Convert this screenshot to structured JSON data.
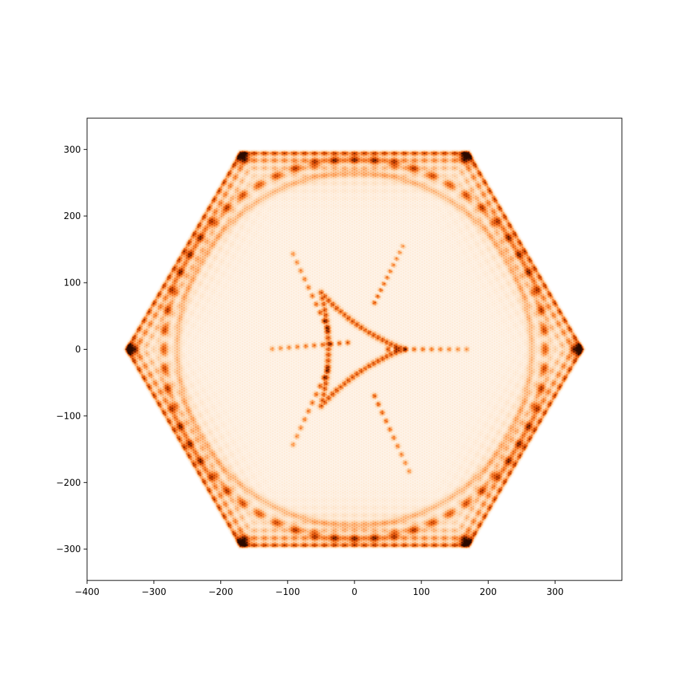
{
  "chart_data": {
    "type": "heatmap",
    "title": "",
    "xlabel": "",
    "ylabel": "",
    "xlim": [
      -400,
      400
    ],
    "ylim": [
      -347,
      347
    ],
    "x_ticks": [
      -400,
      -300,
      -200,
      -100,
      0,
      100,
      200,
      300
    ],
    "y_ticks": [
      -300,
      -200,
      -100,
      0,
      100,
      200,
      300
    ],
    "x_tick_labels": [
      "−400",
      "−300",
      "−200",
      "−100",
      "0",
      "100",
      "200",
      "300"
    ],
    "y_tick_labels": [
      "−300",
      "−200",
      "−100",
      "0",
      "100",
      "200",
      "300"
    ],
    "grid": false,
    "colormap": "Oranges",
    "colormap_stops": [
      "#ffffff",
      "#fdd9b4",
      "#fd8d3c",
      "#d94801",
      "#7f2704",
      "#2b0a00"
    ],
    "pattern": {
      "hexagon_vertices": [
        [
          340,
          0
        ],
        [
          170,
          294
        ],
        [
          -170,
          294
        ],
        [
          -340,
          0
        ],
        [
          -170,
          -294
        ],
        [
          170,
          -294
        ]
      ],
      "ring_radius": 285,
      "caustic_rays": [
        {
          "from": [
            -40,
            30
          ],
          "to": [
            -95,
            150
          ]
        },
        {
          "from": [
            -40,
            -30
          ],
          "to": [
            -95,
            -150
          ]
        },
        {
          "from": [
            50,
            0
          ],
          "to": [
            175,
            0
          ]
        },
        {
          "from": [
            -10,
            10
          ],
          "to": [
            -130,
            0
          ]
        },
        {
          "from": [
            30,
            -70
          ],
          "to": [
            85,
            -190
          ]
        },
        {
          "from": [
            30,
            70
          ],
          "to": [
            75,
            160
          ]
        }
      ],
      "deltoid_vertices": [
        [
          75,
          0
        ],
        [
          -50,
          85
        ],
        [
          -50,
          -85
        ]
      ]
    }
  }
}
